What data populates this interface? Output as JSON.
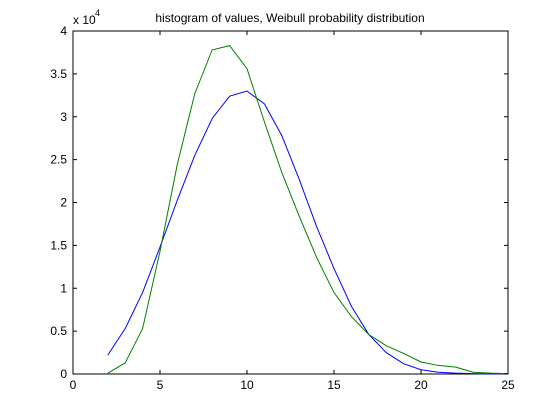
{
  "chart_data": {
    "type": "line",
    "title": "histogram of values, Weibull probability distribution",
    "xlabel": "",
    "ylabel": "",
    "y_scale_multiplier": "x 10",
    "y_scale_exponent": "4",
    "xlim": [
      0,
      25
    ],
    "ylim": [
      0,
      40000
    ],
    "x_ticks": [
      0,
      5,
      10,
      15,
      20,
      25
    ],
    "x_tick_labels": [
      "0",
      "5",
      "10",
      "15",
      "20",
      "25"
    ],
    "y_ticks": [
      0,
      5000,
      10000,
      15000,
      20000,
      25000,
      30000,
      35000,
      40000
    ],
    "y_tick_labels": [
      "0",
      "0.5",
      "1",
      "1.5",
      "2",
      "2.5",
      "3",
      "3.5",
      "4"
    ],
    "grid": false,
    "legend": "none",
    "x": [
      2,
      3,
      4,
      5,
      6,
      7,
      8,
      9,
      10,
      11,
      12,
      13,
      14,
      15,
      16,
      17,
      18,
      19,
      20,
      21,
      22,
      23,
      24,
      25
    ],
    "series": [
      {
        "color": "#0000ff",
        "values": [
          2200,
          5300,
          9500,
          14800,
          20300,
          25500,
          29800,
          32400,
          33000,
          31500,
          27800,
          22700,
          17200,
          12300,
          7900,
          4600,
          2500,
          1200,
          500,
          200,
          100,
          50,
          20,
          10
        ]
      },
      {
        "color": "#008000",
        "values": [
          100,
          1300,
          5300,
          14300,
          24500,
          32700,
          37800,
          38300,
          35600,
          29400,
          23500,
          18400,
          13600,
          9500,
          6700,
          4600,
          3300,
          2400,
          1400,
          1000,
          800,
          200,
          100,
          50
        ]
      }
    ]
  }
}
